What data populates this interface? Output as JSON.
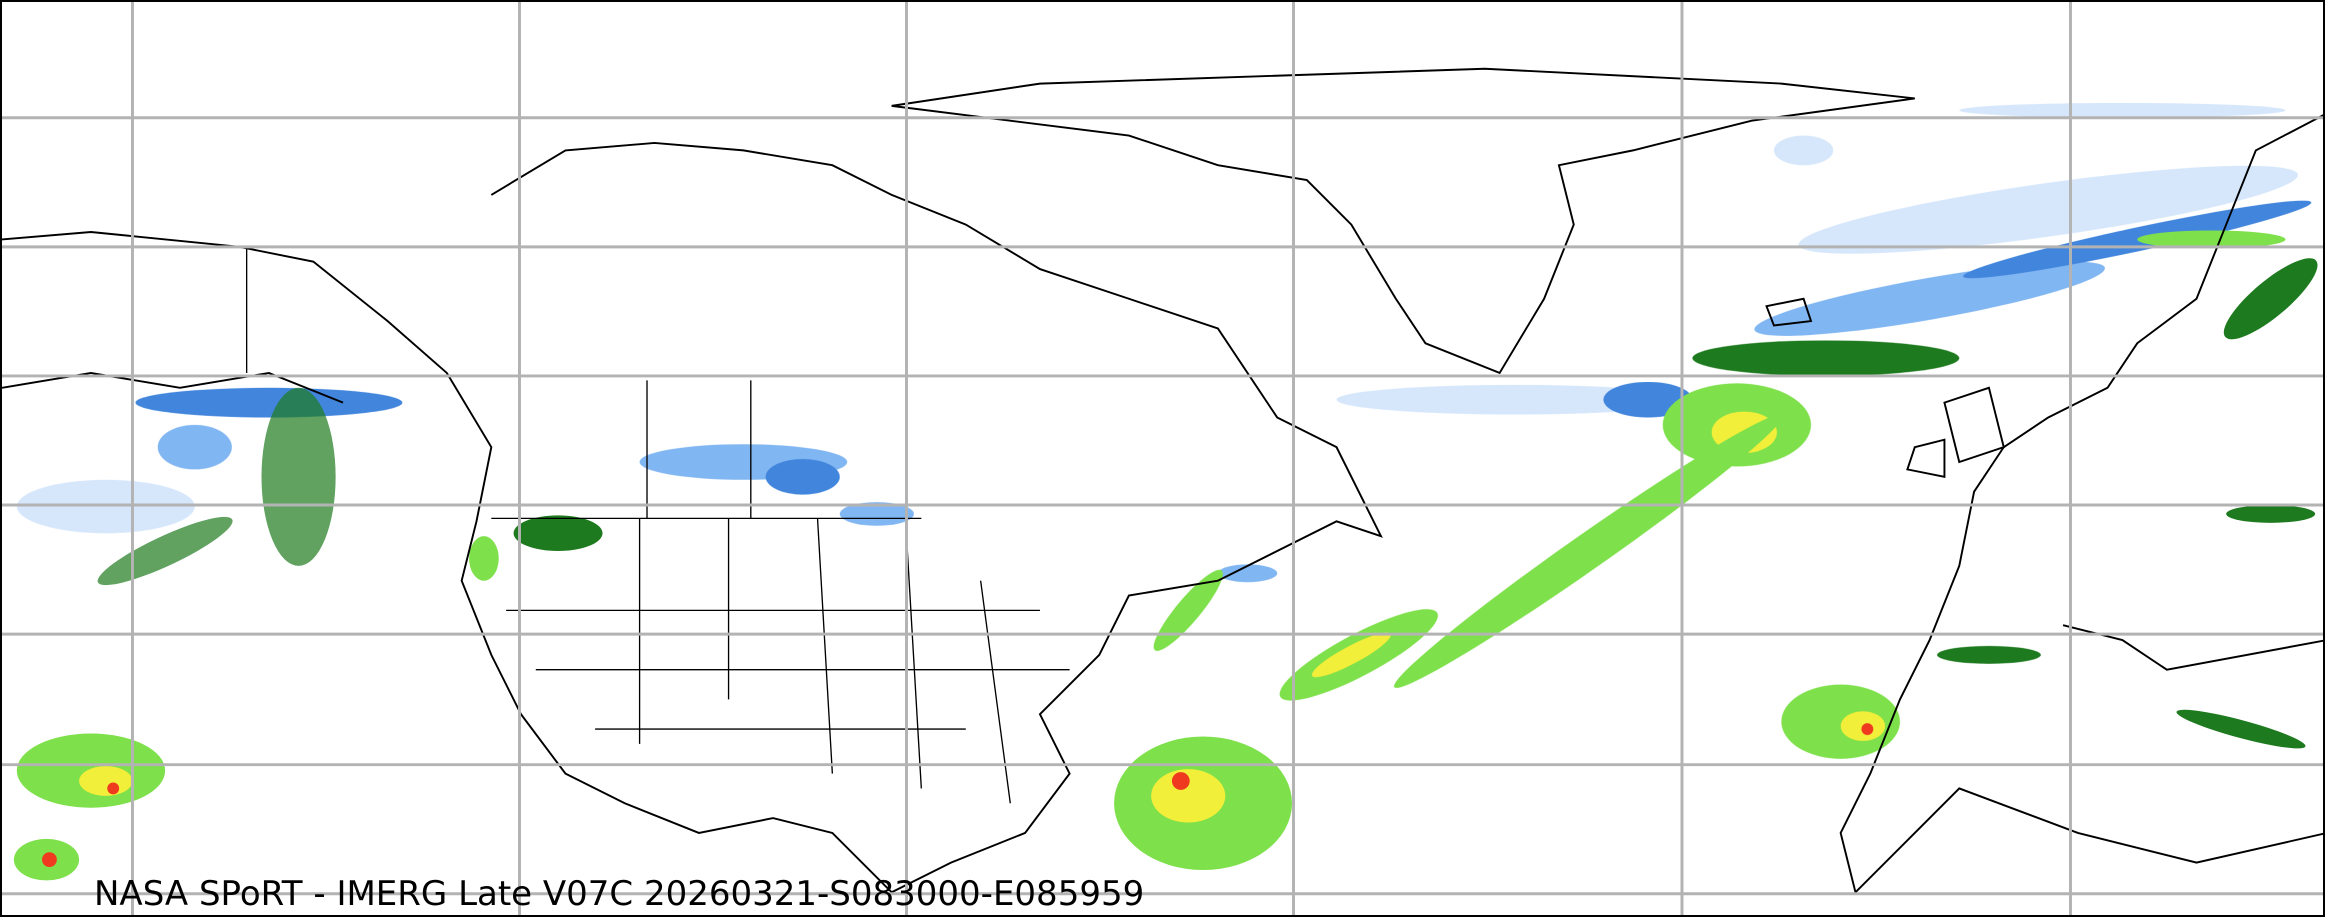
{
  "caption": "NASA SPoRT - IMERG Late V07C 20260321-S083000-E085959",
  "map": {
    "product": "IMERG Late precipitation",
    "region": "North Atlantic / North America / Europe",
    "gridlines": true,
    "colors": {
      "snow_light": "#cfe3fb",
      "snow_mid": "#6aa9f0",
      "snow_heavy": "#1f6fd6",
      "rain_light": "#7ee04a",
      "rain_dark": "#1e7a1e",
      "rain_mid": "#f2ef3a",
      "rain_heavy": "#ef3a1f",
      "grid": "#b3b3b3",
      "coast": "#000000"
    }
  }
}
